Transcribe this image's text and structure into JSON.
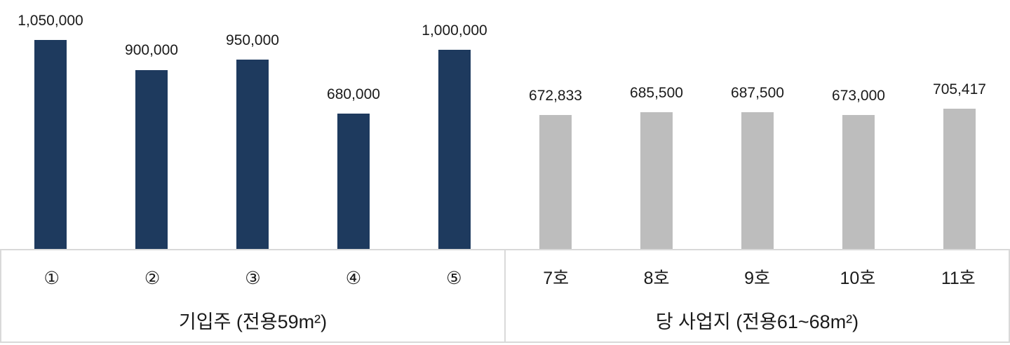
{
  "chart_data": {
    "type": "bar",
    "title": "",
    "xlabel": "",
    "ylabel": "",
    "ymax": 1050000,
    "grid": false,
    "legend": false,
    "axis_border_color": "#d9d9d9",
    "text_color": "#1a1a1a",
    "background_color": "#ffffff",
    "groups": [
      {
        "label": "기입주 (전용59m²)",
        "bar_color": "#1e3a5e",
        "categories": [
          "①",
          "②",
          "③",
          "④",
          "⑤"
        ],
        "values": [
          1050000,
          900000,
          950000,
          680000,
          1000000
        ],
        "value_labels": [
          "1,050,000",
          "900,000",
          "950,000",
          "680,000",
          "1,000,000"
        ]
      },
      {
        "label": "당 사업지 (전용61~68m²)",
        "bar_color": "#bdbdbd",
        "categories": [
          "7호",
          "8호",
          "9호",
          "10호",
          "11호"
        ],
        "values": [
          672833,
          685500,
          687500,
          673000,
          705417
        ],
        "value_labels": [
          "672,833",
          "685,500",
          "687,500",
          "673,000",
          "705,417"
        ]
      }
    ]
  }
}
